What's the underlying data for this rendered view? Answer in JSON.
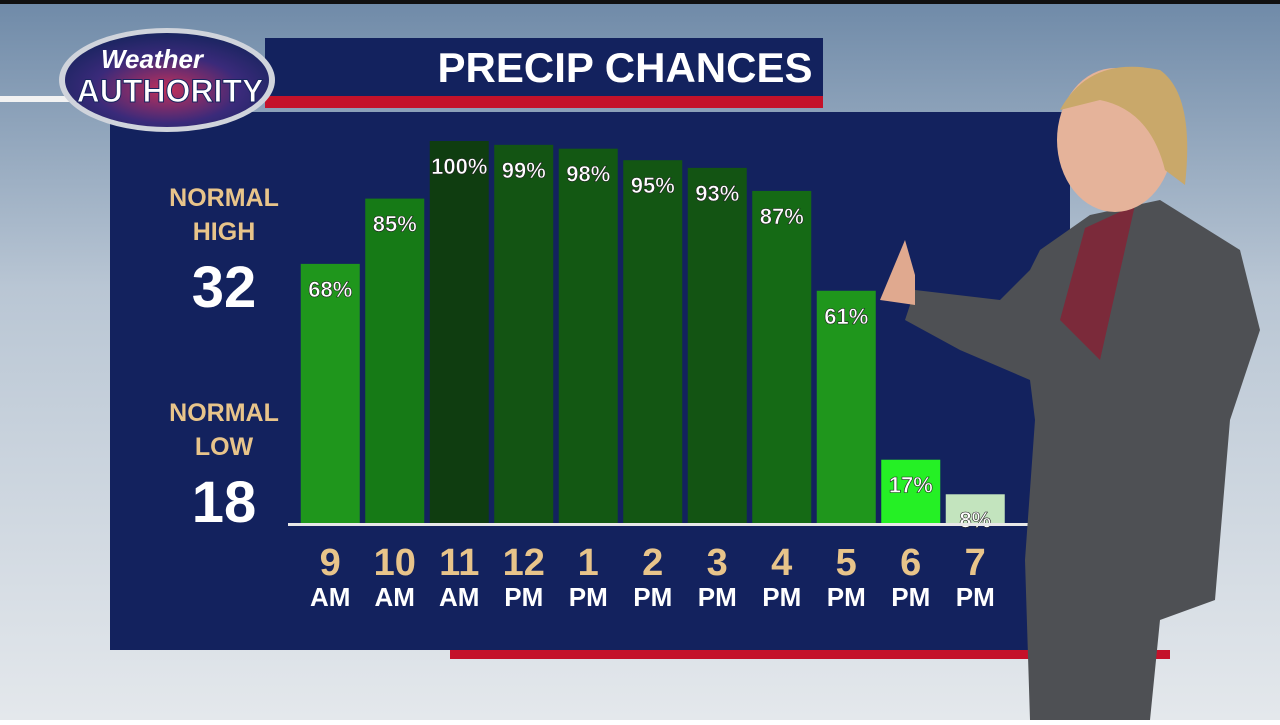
{
  "logo": {
    "line1": "Weather",
    "line2": "AUTHORITY"
  },
  "sidebar": {
    "high_label": [
      "NORMAL",
      "HIGH"
    ],
    "high": 32,
    "low_label": [
      "NORMAL",
      "LOW"
    ],
    "low": 18
  },
  "chart_data": {
    "type": "bar",
    "title": "PRECIP CHANCES",
    "categories": [
      [
        "9",
        "AM"
      ],
      [
        "10",
        "AM"
      ],
      [
        "11",
        "AM"
      ],
      [
        "12",
        "PM"
      ],
      [
        "1",
        "PM"
      ],
      [
        "2",
        "PM"
      ],
      [
        "3",
        "PM"
      ],
      [
        "4",
        "PM"
      ],
      [
        "5",
        "PM"
      ],
      [
        "6",
        "PM"
      ],
      [
        "7",
        "PM"
      ]
    ],
    "values": [
      68,
      85,
      100,
      99,
      98,
      95,
      93,
      87,
      61,
      17,
      8
    ],
    "value_labels": [
      "68%",
      "85%",
      "100%",
      "99%",
      "98%",
      "95%",
      "93%",
      "87%",
      "61%",
      "17%",
      "8%"
    ],
    "colors": [
      "#1f961c",
      "#167a16",
      "#0f3d10",
      "#135413",
      "#135813",
      "#135613",
      "#135413",
      "#156a15",
      "#1f961c",
      "#25f025",
      "#c3e4be"
    ],
    "ylim": [
      0,
      100
    ]
  }
}
